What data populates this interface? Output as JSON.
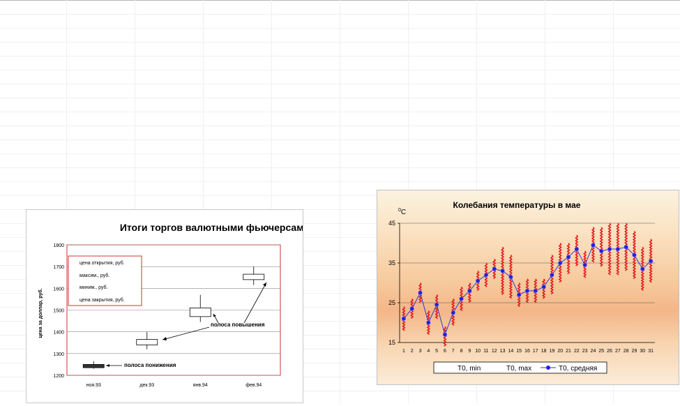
{
  "chart_data": [
    {
      "type": "candlestick",
      "title": "Итоги торгов валютными фьючерсами",
      "ylabel": "цена за доллар, руб.",
      "ylim": [
        1200,
        1800
      ],
      "yticks": [
        "1200",
        "1300",
        "1400",
        "1500",
        "1600",
        "1700",
        "1800"
      ],
      "categories": [
        "ноя.93",
        "дек.93",
        "янв.94",
        "фев.94"
      ],
      "series": [
        {
          "name": "цена открытия,  руб.",
          "values": [
            1250,
            1340,
            1470,
            1640
          ]
        },
        {
          "name": "максим., руб.",
          "values": [
            1265,
            1400,
            1570,
            1700
          ]
        },
        {
          "name": "миним., руб.",
          "values": [
            1230,
            1320,
            1445,
            1615
          ]
        },
        {
          "name": "цена закрытия,  руб.",
          "values": [
            1235,
            1365,
            1510,
            1665
          ]
        }
      ],
      "annotations": [
        "полоса понижения",
        "полоса повышения"
      ],
      "colors": {
        "down": "#333333",
        "up": "#ffffff",
        "plot_border": "#cc3333"
      }
    },
    {
      "type": "line",
      "title": "Колебания температуры в мае",
      "ylabel": "°C",
      "ylabel_parts": [
        "0",
        "C"
      ],
      "ylim": [
        15,
        45
      ],
      "yticks": [
        "15",
        "25",
        "35",
        "45"
      ],
      "categories": [
        "1",
        "2",
        "3",
        "4",
        "5",
        "6",
        "7",
        "8",
        "9",
        "10",
        "11",
        "12",
        "13",
        "14",
        "15",
        "16",
        "17",
        "18",
        "19",
        "20",
        "21",
        "22",
        "23",
        "24",
        "25",
        "26",
        "27",
        "28",
        "29",
        "30",
        "31"
      ],
      "series": [
        {
          "name": "T0, min",
          "values": [
            18,
            21,
            25,
            17,
            21,
            14,
            19,
            23,
            25,
            28,
            29,
            31,
            27,
            26,
            24,
            25,
            25,
            26,
            27,
            30,
            32,
            34,
            31,
            35,
            34,
            32,
            32,
            33,
            31,
            28,
            30
          ]
        },
        {
          "name": "T0, max",
          "values": [
            24,
            26,
            30,
            23,
            27,
            19,
            26,
            29,
            30,
            33,
            35,
            36,
            39,
            37,
            30,
            31,
            31,
            31,
            37,
            40,
            40,
            42,
            38,
            44,
            44,
            45,
            45,
            45,
            43,
            39,
            41
          ]
        },
        {
          "name": "T0, средняя",
          "values": [
            21,
            23.5,
            27.5,
            20,
            24.5,
            17,
            22.5,
            26,
            28,
            30.5,
            32,
            33.5,
            33,
            31.5,
            27,
            28,
            28,
            29,
            32,
            35,
            36.5,
            38.5,
            34.5,
            39.5,
            38,
            38.5,
            38.5,
            39,
            37,
            33.5,
            35.5
          ]
        }
      ],
      "colors": {
        "range": "#e21a1a",
        "mean_line": "#3333cc",
        "mean_marker": "#2222dd"
      }
    }
  ]
}
